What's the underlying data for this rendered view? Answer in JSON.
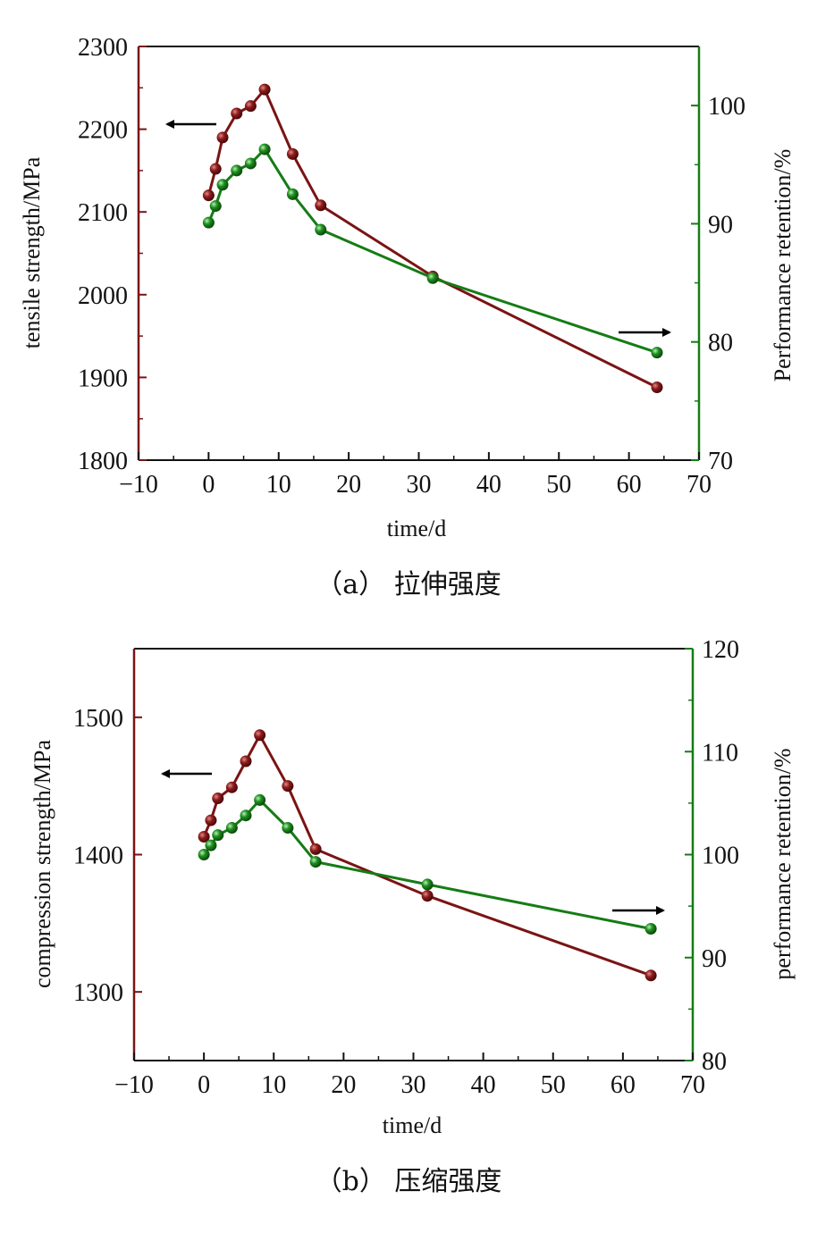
{
  "colors": {
    "left": "#7a1414",
    "right": "#157c15",
    "axis": "#111111",
    "arrow": "#000000"
  },
  "chart_data": [
    {
      "id": "a",
      "type": "line",
      "caption": "（a） 拉伸强度",
      "xlabel": "time/d",
      "ylabel": "tensile strength/MPa",
      "y2label": "Performance retention/%",
      "xlim": [
        -10,
        70
      ],
      "xticks": [
        -10,
        0,
        10,
        20,
        30,
        40,
        50,
        60,
        70
      ],
      "ylim": [
        1800,
        2300
      ],
      "yticks": [
        1800,
        1900,
        2000,
        2100,
        2200,
        2300
      ],
      "y2lim": [
        70,
        105
      ],
      "y2ticks": [
        70,
        80,
        90,
        100
      ],
      "series": [
        {
          "axis": "left",
          "x": [
            0,
            1,
            2,
            4,
            6,
            8,
            12,
            16,
            32,
            64
          ],
          "y": [
            2120,
            2152,
            2190,
            2219,
            2228,
            2248,
            2170,
            2108,
            2022,
            1888
          ]
        },
        {
          "axis": "right",
          "x": [
            0,
            1,
            2,
            4,
            6,
            8,
            12,
            16,
            32,
            64
          ],
          "y": [
            90.1,
            91.5,
            93.3,
            94.5,
            95.1,
            96.3,
            92.5,
            89.5,
            85.4,
            79.1
          ]
        }
      ],
      "arrows": [
        {
          "direction": "left",
          "near": "left-axis"
        },
        {
          "direction": "right",
          "near": "right-axis"
        }
      ],
      "grid": false
    },
    {
      "id": "b",
      "type": "line",
      "caption": "（b） 压缩强度",
      "xlabel": "time/d",
      "ylabel": "compression strength/MPa",
      "y2label": "performance retention/%",
      "xlim": [
        -10,
        70
      ],
      "xticks": [
        -10,
        0,
        10,
        20,
        30,
        40,
        50,
        60,
        70
      ],
      "ylim": [
        1250,
        1550
      ],
      "yticks": [
        1300,
        1400,
        1500
      ],
      "y2lim": [
        80,
        120
      ],
      "y2ticks": [
        80,
        90,
        100,
        110,
        120
      ],
      "series": [
        {
          "axis": "left",
          "x": [
            0,
            1,
            2,
            4,
            6,
            8,
            12,
            16,
            32,
            64
          ],
          "y": [
            1413,
            1425,
            1441,
            1449,
            1468,
            1487,
            1450,
            1404,
            1370,
            1312
          ]
        },
        {
          "axis": "right",
          "x": [
            0,
            1,
            2,
            4,
            6,
            8,
            12,
            16,
            32,
            64
          ],
          "y": [
            100.0,
            100.9,
            101.9,
            102.6,
            103.8,
            105.3,
            102.6,
            99.3,
            97.1,
            92.8
          ]
        }
      ],
      "arrows": [
        {
          "direction": "left",
          "near": "left-axis"
        },
        {
          "direction": "right",
          "near": "right-axis"
        }
      ],
      "grid": false
    }
  ]
}
